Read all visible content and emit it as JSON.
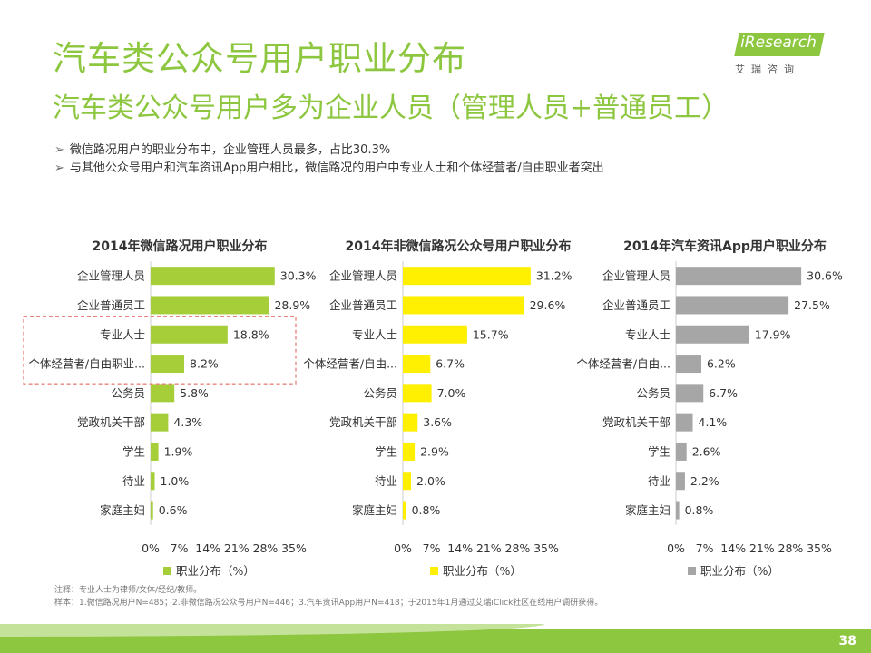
{
  "header": {
    "title": "汽车类公众号用户职业分布",
    "subtitle": "汽车类公众号用户多为企业人员（管理人员+普通员工）"
  },
  "logo": {
    "text": "iResearch",
    "cn": "艾瑞咨询"
  },
  "bullets": [
    "微信路况用户的职业分布中，企业管理人员最多，占比30.3%",
    "与其他公众号用户和汽车资讯App用户相比，微信路况的用户中专业人士和个体经营者/自由职业者突出"
  ],
  "bullet_marker": "➢",
  "footnote": {
    "line1": "注释：专业人士为律师/文体/经纪/教师。",
    "line2": "样本：1.微信路况用户N=485；2.非微信路况公众号用户N=446；3.汽车资讯App用户N=418；于2015年1月通过艾瑞iClick社区在线用户调研获得。"
  },
  "page_number": "38",
  "colors": {
    "brand_green": "#8dc63f",
    "chart1_bar": "#a6ce39",
    "chart2_bar": "#ffef00",
    "chart3_bar": "#a6a6a6",
    "highlight_box": "#e8837c"
  },
  "chart_data": [
    {
      "type": "bar",
      "orientation": "horizontal",
      "title": "2014年微信路况用户职业分布",
      "categories": [
        "企业管理人员",
        "企业普通员工",
        "专业人士",
        "个体经营者/自由职业...",
        "公务员",
        "党政机关干部",
        "学生",
        "待业",
        "家庭主妇"
      ],
      "series": [
        {
          "name": "职业分布（%）",
          "values": [
            30.3,
            28.9,
            18.8,
            8.2,
            5.8,
            4.3,
            1.9,
            1.0,
            0.6
          ],
          "color": "#a6ce39"
        }
      ],
      "data_labels": [
        "30.3%",
        "28.9%",
        "18.8%",
        "8.2%",
        "5.8%",
        "4.3%",
        "1.9%",
        "1.0%",
        "0.6%"
      ],
      "xlim": [
        0,
        35
      ],
      "x_ticks": [
        "0%",
        "7%",
        "14%",
        "21%",
        "28%",
        "35%"
      ],
      "highlighted_categories": [
        "专业人士",
        "个体经营者/自由职业..."
      ],
      "legend": "bottom"
    },
    {
      "type": "bar",
      "orientation": "horizontal",
      "title": "2014年非微信路况公众号用户职业分布",
      "categories": [
        "企业管理人员",
        "企业普通员工",
        "专业人士",
        "个体经营者/自由...",
        "公务员",
        "党政机关干部",
        "学生",
        "待业",
        "家庭主妇"
      ],
      "series": [
        {
          "name": "职业分布（%）",
          "values": [
            31.2,
            29.6,
            15.7,
            6.7,
            7.0,
            3.6,
            2.9,
            2.0,
            0.8
          ],
          "color": "#ffef00"
        }
      ],
      "data_labels": [
        "31.2%",
        "29.6%",
        "15.7%",
        "6.7%",
        "7.0%",
        "3.6%",
        "2.9%",
        "2.0%",
        "0.8%"
      ],
      "xlim": [
        0,
        35
      ],
      "x_ticks": [
        "0%",
        "7%",
        "14%",
        "21%",
        "28%",
        "35%"
      ],
      "legend": "bottom"
    },
    {
      "type": "bar",
      "orientation": "horizontal",
      "title": "2014年汽车资讯App用户职业分布",
      "categories": [
        "企业管理人员",
        "企业普通员工",
        "专业人士",
        "个体经营者/自由...",
        "公务员",
        "党政机关干部",
        "学生",
        "待业",
        "家庭主妇"
      ],
      "series": [
        {
          "name": "职业分布（%）",
          "values": [
            30.6,
            27.5,
            17.9,
            6.2,
            6.7,
            4.1,
            2.6,
            2.2,
            0.8
          ],
          "color": "#a6a6a6"
        }
      ],
      "data_labels": [
        "30.6%",
        "27.5%",
        "17.9%",
        "6.2%",
        "6.7%",
        "4.1%",
        "2.6%",
        "2.2%",
        "0.8%"
      ],
      "xlim": [
        0,
        35
      ],
      "x_ticks": [
        "0%",
        "7%",
        "14%",
        "21%",
        "28%",
        "35%"
      ],
      "legend": "bottom"
    }
  ]
}
